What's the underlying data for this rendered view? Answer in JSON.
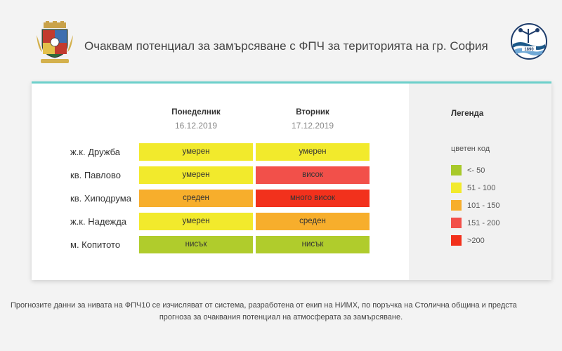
{
  "header": {
    "title": "Очаквам потенциал за замърсяване с ФПЧ за територията на гр. София",
    "left_logo_icon": "sofia-coat-of-arms-icon",
    "right_logo_icon": "nimh-logo-icon"
  },
  "days": [
    {
      "name": "Понеделник",
      "date": "16.12.2019"
    },
    {
      "name": "Вторник",
      "date": "17.12.2019"
    }
  ],
  "rows": [
    {
      "label": "ж.к. Дружба",
      "values": [
        {
          "text": "умерен",
          "color": "#f2ea2c"
        },
        {
          "text": "умерен",
          "color": "#f2ea2c"
        }
      ]
    },
    {
      "label": "кв. Павлово",
      "values": [
        {
          "text": "умерен",
          "color": "#f2ea2c"
        },
        {
          "text": "висок",
          "color": "#f2504a"
        }
      ]
    },
    {
      "label": "кв. Хиподрума",
      "values": [
        {
          "text": "среден",
          "color": "#f7ae2c"
        },
        {
          "text": "много висок",
          "color": "#f2311c"
        }
      ]
    },
    {
      "label": "ж.к. Надежда",
      "values": [
        {
          "text": "умерен",
          "color": "#f2ea2c"
        },
        {
          "text": "среден",
          "color": "#f7ae2c"
        }
      ]
    },
    {
      "label": "м. Копитото",
      "values": [
        {
          "text": "нисък",
          "color": "#b0cc2c"
        },
        {
          "text": "нисък",
          "color": "#b0cc2c"
        }
      ]
    }
  ],
  "legend": {
    "title": "Легенда",
    "subtitle": "цветен код",
    "items": [
      {
        "label": "<- 50",
        "color": "#a8c92a"
      },
      {
        "label": "51 - 100",
        "color": "#f2ea2c"
      },
      {
        "label": "101 - 150",
        "color": "#f7ae2c"
      },
      {
        "label": "151 - 200",
        "color": "#f2504a"
      },
      {
        "label": ">200",
        "color": "#f2311c"
      }
    ]
  },
  "footer": {
    "line1": "Прогнозите данни за нивата на ФПЧ10 се изчисляват от система, разработена от екип на НИМХ, по поръчка на Столична община и предста",
    "line2": "прогноза за очаквания потенциал на атмосферата за замърсяване."
  }
}
